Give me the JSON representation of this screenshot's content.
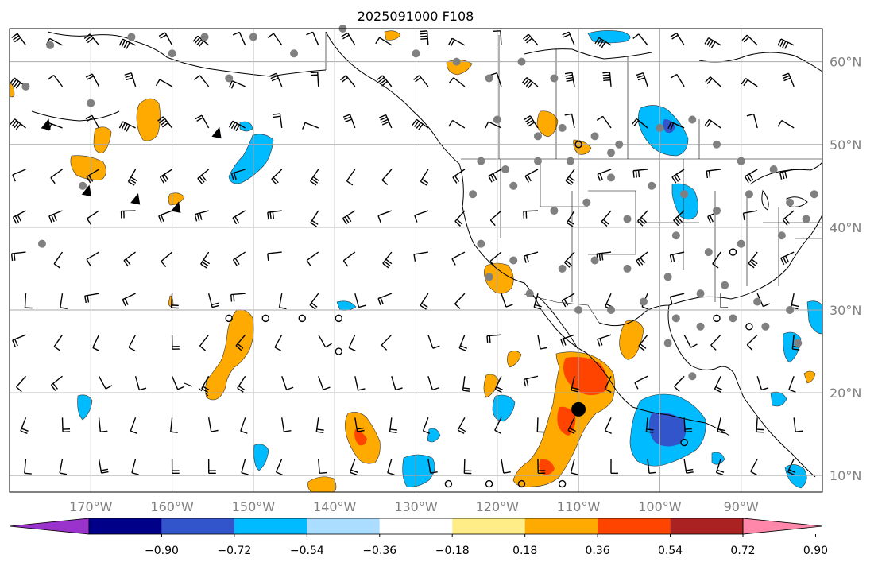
{
  "title": "2025091000 F108",
  "lon_labels": [
    "170°W",
    "160°W",
    "150°W",
    "140°W",
    "130°W",
    "120°W",
    "110°W",
    "100°W",
    "90°W"
  ],
  "lat_labels": [
    "60°N",
    "50°N",
    "40°N",
    "30°N",
    "20°N",
    "10°N"
  ],
  "colorbar": {
    "ticks": [
      "−0.90",
      "−0.72",
      "−0.54",
      "−0.36",
      "−0.18",
      "0.18",
      "0.36",
      "0.54",
      "0.72",
      "0.90"
    ],
    "colors": [
      "#9933cc",
      "#000088",
      "#3355cc",
      "#00bbff",
      "#aaddff",
      "#ffffff",
      "#ffee88",
      "#ffaa00",
      "#ff4400",
      "#aa2222",
      "#ff88aa"
    ]
  },
  "map_extent": {
    "lon_min": -180,
    "lon_max": -80,
    "lat_min": 8,
    "lat_max": 64
  },
  "grid_lons": [
    -170,
    -160,
    -150,
    -140,
    -130,
    -120,
    -110,
    -100,
    -90
  ],
  "grid_lats": [
    60,
    50,
    40,
    30,
    20,
    10
  ],
  "highlight_point": {
    "lon": -110.0,
    "lat": 18.0
  }
}
